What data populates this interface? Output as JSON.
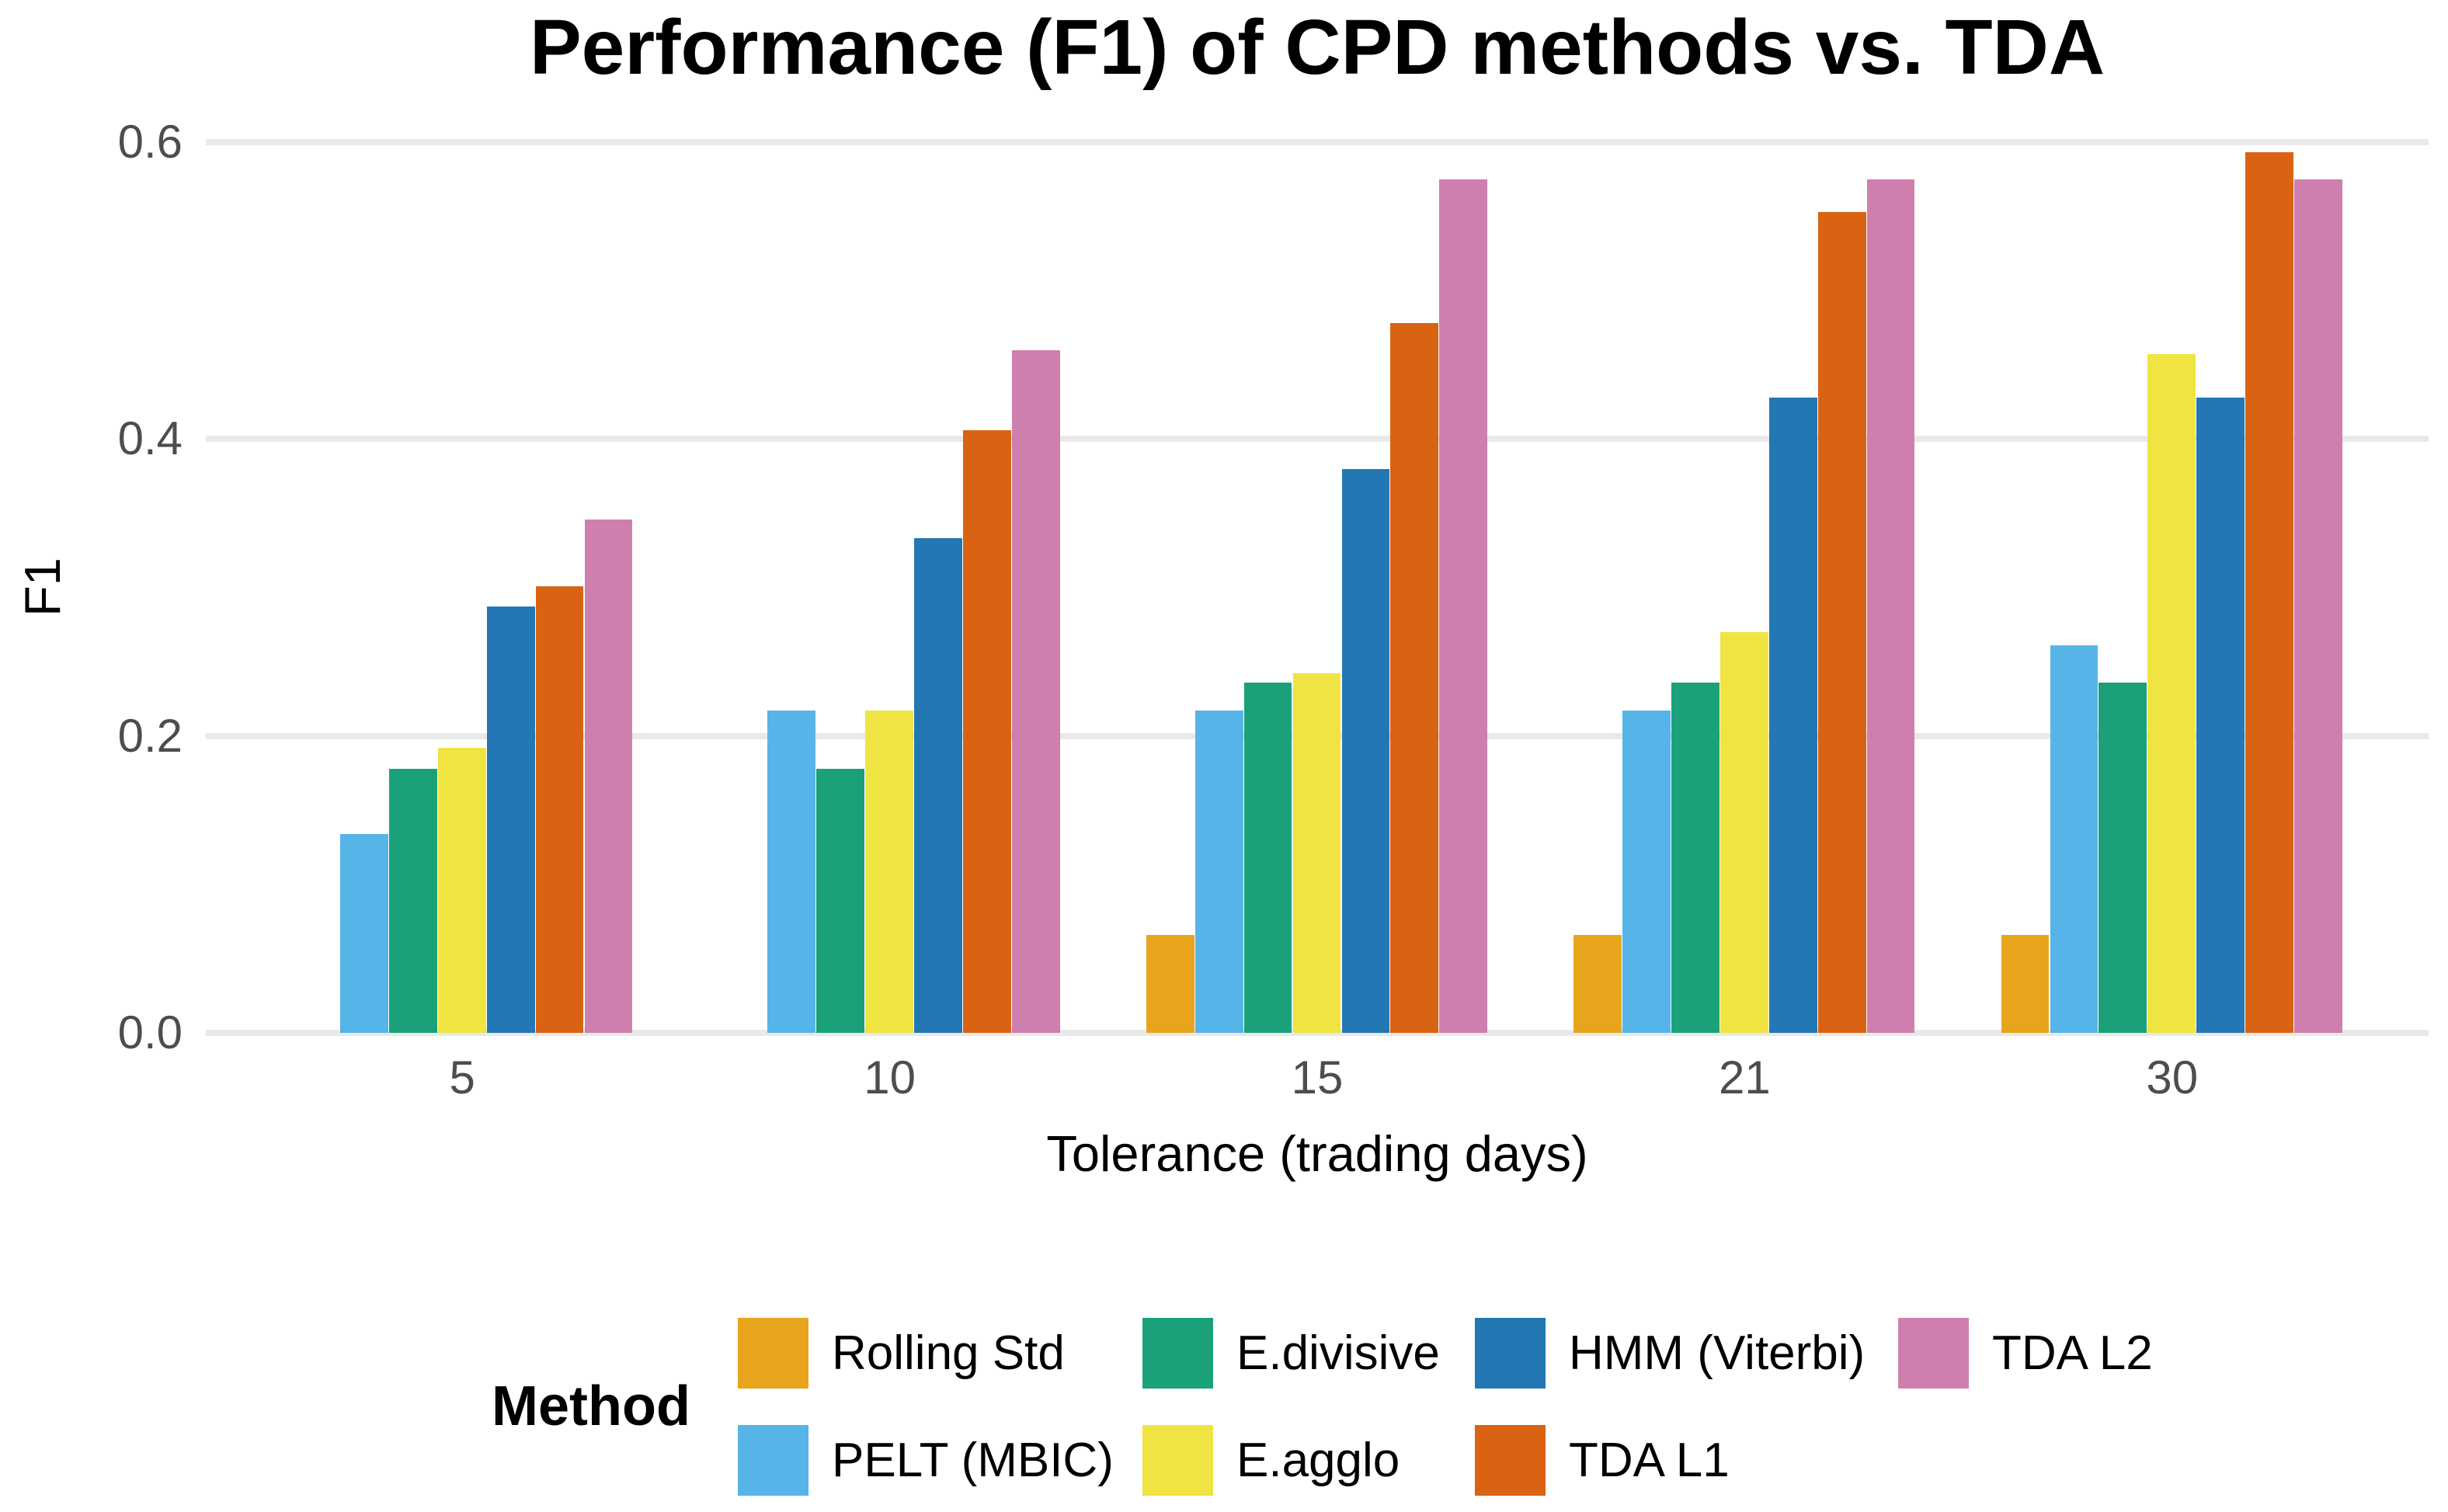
{
  "chart_data": {
    "type": "bar",
    "title": "Performance (F1) of CPD methods vs. TDA",
    "xlabel": "Tolerance (trading days)",
    "ylabel": "F1",
    "categories": [
      "5",
      "10",
      "15",
      "21",
      "30"
    ],
    "y_ticks": [
      "0.0",
      "0.2",
      "0.4",
      "0.6"
    ],
    "ylim": [
      0,
      0.6
    ],
    "grid": "major-horizontal",
    "legend_title": "Method",
    "legend_position": "bottom",
    "legend_rows": 2,
    "series": [
      {
        "name": "Rolling Std",
        "color": "#E9A41D",
        "values": [
          null,
          null,
          0.066,
          0.066,
          0.066
        ]
      },
      {
        "name": "PELT (MBIC)",
        "color": "#56B4E9",
        "values": [
          0.134,
          0.217,
          0.217,
          0.217,
          0.261
        ]
      },
      {
        "name": "E.divisive",
        "color": "#1AA179",
        "values": [
          0.178,
          0.178,
          0.236,
          0.236,
          0.236
        ]
      },
      {
        "name": "E.agglo",
        "color": "#F0E442",
        "values": [
          0.192,
          0.217,
          0.242,
          0.27,
          0.457
        ]
      },
      {
        "name": "HMM (Viterbi)",
        "color": "#2377B4",
        "values": [
          0.287,
          0.333,
          0.38,
          0.428,
          0.428
        ]
      },
      {
        "name": "TDA L1",
        "color": "#D96312",
        "values": [
          0.301,
          0.406,
          0.478,
          0.553,
          0.593
        ]
      },
      {
        "name": "TDA L2",
        "color": "#CF7FAE",
        "values": [
          0.346,
          0.46,
          0.575,
          0.575,
          0.575
        ]
      }
    ],
    "colors": {
      "gridline": "#E9E9E9",
      "tick_text": "#4D4D4D",
      "text": "#000000",
      "background": "#FFFFFF"
    }
  }
}
